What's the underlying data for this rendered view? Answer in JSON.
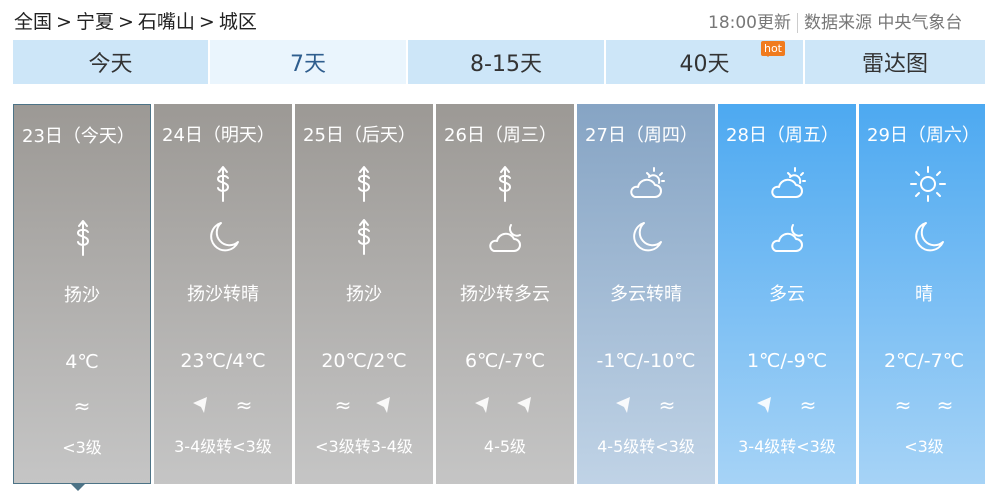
{
  "breadcrumb": [
    "全国",
    ">",
    "宁夏",
    ">",
    "石嘴山",
    ">",
    "城区"
  ],
  "update": {
    "time": "18:00更新",
    "source": "数据来源 中央气象台"
  },
  "tabs": [
    {
      "label": "今天"
    },
    {
      "label": "7天",
      "active": true
    },
    {
      "label": "8-15天"
    },
    {
      "label": "40天",
      "badge": "hot"
    },
    {
      "label": "雷达图"
    }
  ],
  "days": [
    {
      "date": "23日（今天）",
      "icons": [
        "sandstorm-icon"
      ],
      "desc": "扬沙",
      "temp": "4℃",
      "winds": [
        "breeze-icon"
      ],
      "wind": "<3级",
      "bg": [
        "#9c9995",
        "#c5c5c5"
      ]
    },
    {
      "date": "24日（明天）",
      "icons": [
        "sandstorm-icon",
        "moon-icon"
      ],
      "desc": "扬沙转晴",
      "temp": "23℃/4℃",
      "winds": [
        "wind-arrow-icon",
        "breeze-icon"
      ],
      "wind": "3-4级转<3级",
      "bg": [
        "#9c9995",
        "#c5c5c5"
      ]
    },
    {
      "date": "25日（后天）",
      "icons": [
        "sandstorm-icon",
        "sandstorm-icon"
      ],
      "desc": "扬沙",
      "temp": "20℃/2℃",
      "winds": [
        "breeze-icon",
        "wind-arrow-icon"
      ],
      "wind": "<3级转3-4级",
      "bg": [
        "#9c9995",
        "#c5c5c5"
      ]
    },
    {
      "date": "26日（周三）",
      "icons": [
        "sandstorm-icon",
        "cloudy-night-icon"
      ],
      "desc": "扬沙转多云",
      "temp": "6℃/-7℃",
      "winds": [
        "wind-arrow-icon",
        "wind-arrow-icon"
      ],
      "wind": "4-5级",
      "bg": [
        "#9c9995",
        "#c5c5c5"
      ]
    },
    {
      "date": "27日（周四）",
      "icons": [
        "partly-cloudy-icon",
        "moon-icon"
      ],
      "desc": "多云转晴",
      "temp": "-1℃/-10℃",
      "winds": [
        "wind-arrow-icon",
        "breeze-icon"
      ],
      "wind": "4-5级转<3级",
      "bg": [
        "#86a4c4",
        "#c0d3e6"
      ]
    },
    {
      "date": "28日（周五）",
      "icons": [
        "partly-cloudy-icon",
        "cloudy-night-icon"
      ],
      "desc": "多云",
      "temp": "1℃/-9℃",
      "winds": [
        "wind-arrow-icon",
        "breeze-icon"
      ],
      "wind": "3-4级转<3级",
      "bg": [
        "#4da9f1",
        "#a6d3f6"
      ]
    },
    {
      "date": "29日（周六）",
      "icons": [
        "sun-icon",
        "moon-icon"
      ],
      "desc": "晴",
      "temp": "2℃/-7℃",
      "winds": [
        "breeze-icon",
        "breeze-icon"
      ],
      "wind": "<3级",
      "bg": [
        "#4da9f1",
        "#a6d3f6"
      ]
    }
  ]
}
